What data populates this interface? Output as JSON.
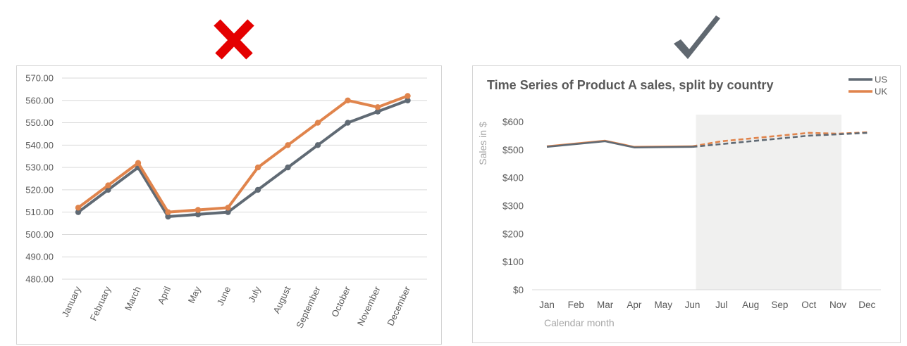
{
  "badges": {
    "wrong_icon": "cross-mark-icon",
    "right_icon": "check-mark-icon",
    "wrong_color": "#e40000",
    "right_color": "#606870"
  },
  "colors": {
    "us": "#606a74",
    "uk": "#e0844c"
  },
  "chart_data": [
    {
      "id": "bad",
      "type": "line",
      "title": "",
      "xlabel": "",
      "ylabel": "",
      "categories": [
        "January",
        "February",
        "March",
        "April",
        "May",
        "June",
        "July",
        "August",
        "September",
        "October",
        "November",
        "December"
      ],
      "series": [
        {
          "values": [
            510,
            520,
            530,
            508,
            509,
            510,
            520,
            530,
            540,
            550,
            555,
            560
          ]
        },
        {
          "values": [
            512,
            522,
            532,
            510,
            511,
            512,
            530,
            540,
            550,
            560,
            557,
            562
          ]
        }
      ],
      "ylim": [
        480,
        570
      ],
      "yticks": [
        "480.00",
        "490.00",
        "500.00",
        "510.00",
        "520.00",
        "530.00",
        "540.00",
        "550.00",
        "560.00",
        "570.00"
      ],
      "markers": true,
      "grid": true,
      "legend": "none"
    },
    {
      "id": "good",
      "type": "line",
      "title": "Time Series of Product A sales, split by country",
      "xlabel": "Calendar month",
      "ylabel": "Sales in $",
      "categories": [
        "Jan",
        "Feb",
        "Mar",
        "Apr",
        "May",
        "Jun",
        "Jul",
        "Aug",
        "Sep",
        "Oct",
        "Nov",
        "Dec"
      ],
      "series": [
        {
          "name": "US",
          "values": [
            510,
            520,
            530,
            508,
            509,
            510,
            520,
            530,
            540,
            550,
            555,
            560
          ]
        },
        {
          "name": "UK",
          "values": [
            512,
            522,
            532,
            510,
            511,
            512,
            530,
            540,
            550,
            560,
            557,
            562
          ]
        }
      ],
      "ylim": [
        0,
        600
      ],
      "yticks": [
        "$0",
        "$100",
        "$200",
        "$300",
        "$400",
        "$500",
        "$600"
      ],
      "forecast_from": "Jun",
      "forecast_to": "Nov",
      "markers": false,
      "grid": false,
      "legend": "top-right"
    }
  ]
}
